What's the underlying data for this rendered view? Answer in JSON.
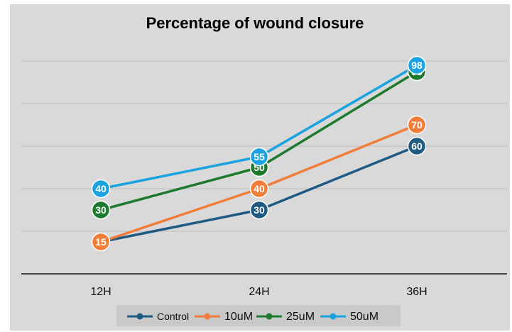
{
  "chart_data": {
    "type": "line",
    "title": "Percentage of wound closure",
    "xlabel": "",
    "ylabel": "",
    "categories": [
      "12H",
      "24H",
      "36H"
    ],
    "ylim": [
      0,
      120
    ],
    "grid": true,
    "legend_position": "bottom",
    "series": [
      {
        "name": "Control",
        "values": [
          15,
          30,
          60
        ],
        "color": "#1f5a82"
      },
      {
        "name": "10uM",
        "values": [
          15,
          40,
          70
        ],
        "color": "#f07d3a"
      },
      {
        "name": "25uM",
        "values": [
          30,
          50,
          95
        ],
        "color": "#1e7a2e"
      },
      {
        "name": "50uM",
        "values": [
          40,
          55,
          98
        ],
        "color": "#1aa3e0"
      }
    ],
    "data_label_color": "#ffffff"
  }
}
